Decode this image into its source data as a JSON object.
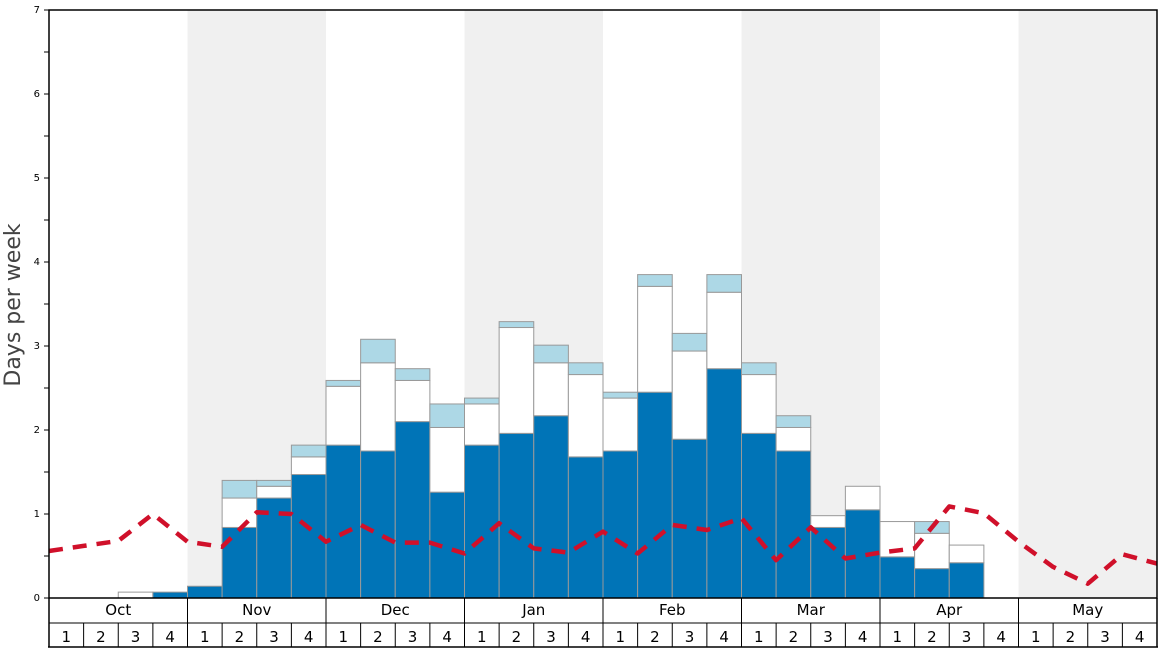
{
  "chart_data": {
    "type": "bar",
    "ylabel": "Days per week",
    "ylim": [
      0,
      7
    ],
    "yticks": [
      0,
      1,
      2,
      3,
      4,
      5,
      6,
      7
    ],
    "months": [
      "Oct",
      "Nov",
      "Dec",
      "Jan",
      "Feb",
      "Mar",
      "Apr",
      "May"
    ],
    "week_labels": [
      "1",
      "2",
      "3",
      "4"
    ],
    "shaded_months": [
      "Nov",
      "Jan",
      "Mar",
      "May"
    ],
    "colors": {
      "base": "#0074b7",
      "middle": "#ffffff",
      "top": "#add8e6",
      "line": "#d0102a",
      "shade": "#f0f0f0",
      "bar_edge": "#999999"
    },
    "series": [
      {
        "color": "#0074b7",
        "values": [
          0,
          0,
          0,
          0.07,
          0.14,
          0.84,
          1.19,
          1.47,
          1.82,
          1.75,
          2.1,
          1.26,
          1.82,
          1.96,
          2.17,
          1.68,
          1.75,
          2.45,
          1.89,
          2.73,
          1.96,
          1.75,
          0.84,
          1.05,
          0.49,
          0.35,
          0.42,
          0,
          0,
          0,
          0,
          0
        ]
      },
      {
        "color": "#ffffff",
        "values": [
          0,
          0,
          0.07,
          0,
          0,
          0.35,
          0.14,
          0.21,
          0.7,
          1.05,
          0.49,
          0.77,
          0.49,
          1.26,
          0.63,
          0.98,
          0.63,
          1.26,
          1.05,
          0.91,
          0.7,
          0.28,
          0.14,
          0.28,
          0.42,
          0.42,
          0.21,
          0,
          0,
          0,
          0,
          0
        ]
      },
      {
        "color": "#add8e6",
        "values": [
          0,
          0,
          0,
          0,
          0,
          0.21,
          0.07,
          0.14,
          0.07,
          0.28,
          0.14,
          0.28,
          0.07,
          0.07,
          0.21,
          0.14,
          0.07,
          0.14,
          0.21,
          0.21,
          0.14,
          0.14,
          0,
          0,
          0,
          0.14,
          0,
          0,
          0,
          0,
          0,
          0
        ]
      }
    ],
    "line": {
      "style": "dashed",
      "values": [
        0.56,
        0.62,
        0.68,
        1.0,
        0.67,
        0.61,
        1.02,
        1.0,
        0.67,
        0.87,
        0.66,
        0.66,
        0.53,
        0.89,
        0.59,
        0.54,
        0.79,
        0.53,
        0.87,
        0.81,
        0.95,
        0.45,
        0.84,
        0.47,
        0.54,
        0.59,
        1.09,
        1.01,
        0.67,
        0.37,
        0.17,
        0.52,
        0.41
      ]
    }
  }
}
